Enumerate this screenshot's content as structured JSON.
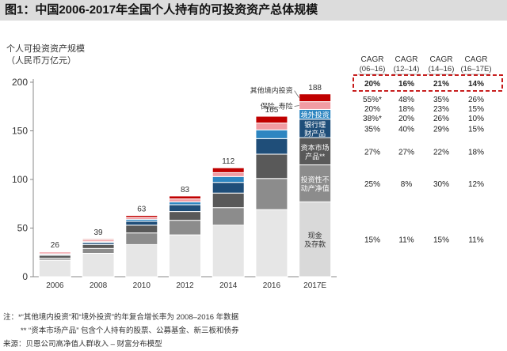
{
  "title": "图1：中国2006-2017年全国个人持有的可投资资产总体规模",
  "ylabel_line1": "个人可投资资产规模",
  "ylabel_line2": "（人民币万亿元）",
  "notes": {
    "line1": "注：*“其他境内投资”和“境外投资”的年复合增长率为 2008–2016 年数据",
    "line2": "** “资本市场产品” 包含个人持有的股票、公募基金、新三板和债券",
    "line3": "来源：贝恩公司高净值人群收入 – 财富分布模型"
  },
  "colors": {
    "cash": "#d9d9d9",
    "realestate": "#8c8c8c",
    "capital": "#595959",
    "bank": "#1f4e79",
    "overseas": "#2e86c1",
    "insurance": "#f19ca3",
    "other": "#c00000",
    "highlight": "#c00000"
  },
  "chart_data": {
    "type": "bar",
    "stacked": true,
    "title": "图1：中国2006-2017年全国个人持有的可投资资产总体规模",
    "ylabel": "个人可投资资产规模（人民币万亿元）",
    "ylim": [
      0,
      200
    ],
    "yticks": [
      0,
      50,
      100,
      150,
      200
    ],
    "categories": [
      "2006",
      "2008",
      "2010",
      "2012",
      "2014",
      "2016",
      "2017E"
    ],
    "totals": [
      26,
      39,
      63,
      83,
      112,
      165,
      188
    ],
    "series": [
      {
        "name": "现金及存款",
        "key": "cash",
        "values": [
          17,
          24,
          33,
          43,
          53,
          69,
          77
        ]
      },
      {
        "name": "投资性不动产净值",
        "key": "realestate",
        "values": [
          2,
          5,
          12,
          15,
          18,
          32,
          38
        ]
      },
      {
        "name": "资本市场产品**",
        "key": "capital",
        "values": [
          3,
          4,
          8,
          9,
          15,
          25,
          28
        ]
      },
      {
        "name": "银行理财产品",
        "key": "bank",
        "values": [
          1,
          2,
          4,
          7,
          11,
          16,
          19
        ]
      },
      {
        "name": "境外投资",
        "key": "overseas",
        "values": [
          0.5,
          1,
          2,
          3,
          6,
          9,
          10
        ]
      },
      {
        "name": "保险–寿险",
        "key": "insurance",
        "values": [
          2,
          2,
          2,
          3,
          4,
          7,
          8
        ]
      },
      {
        "name": "其他境内投资",
        "key": "other",
        "values": [
          0.5,
          1,
          2,
          3,
          5,
          7,
          8
        ]
      }
    ],
    "annotations": {
      "other": "其他境内投资",
      "insurance": "保险–寿险",
      "overseas": "境外投资",
      "bank": "银行理\n财产品",
      "capital": "资本市场\n产品**",
      "realestate": "投资性不\n动产净值",
      "cash": "现金\n及存款"
    },
    "cagr_headers": [
      [
        "CAGR",
        "(06–16)"
      ],
      [
        "CAGR",
        "(12–14)"
      ],
      [
        "CAGR",
        "(14–16)"
      ],
      [
        "CAGR",
        "(16–17E)"
      ]
    ],
    "cagr_rows": [
      {
        "key": "total",
        "values": [
          "20%",
          "16%",
          "21%",
          "14%"
        ]
      },
      {
        "key": "other",
        "values": [
          "55%*",
          "48%",
          "35%",
          "26%"
        ]
      },
      {
        "key": "insurance",
        "values": [
          "20%",
          "18%",
          "23%",
          "15%"
        ]
      },
      {
        "key": "overseas",
        "values": [
          "38%*",
          "20%",
          "26%",
          "10%"
        ]
      },
      {
        "key": "bank",
        "values": [
          "35%",
          "40%",
          "29%",
          "15%"
        ]
      },
      {
        "key": "capital",
        "values": [
          "27%",
          "27%",
          "22%",
          "18%"
        ]
      },
      {
        "key": "realestate",
        "values": [
          "25%",
          "8%",
          "30%",
          "12%"
        ]
      },
      {
        "key": "cash",
        "values": [
          "15%",
          "11%",
          "15%",
          "11%"
        ]
      }
    ]
  }
}
